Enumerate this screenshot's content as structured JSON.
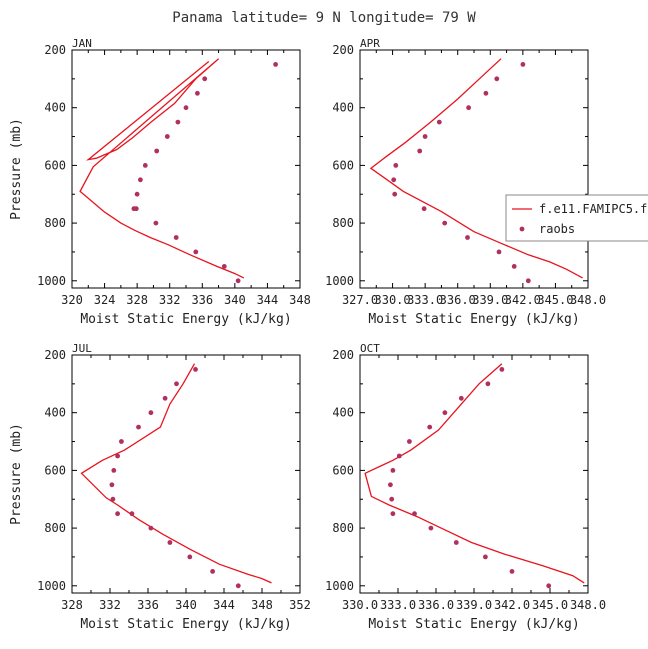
{
  "figure": {
    "title": "Panama  latitude= 9 N longitude= 79 W"
  },
  "chart_data": [
    {
      "type": "line",
      "panel": "JAN",
      "xlabel": "Moist Static Energy (kJ/kg)",
      "ylabel": "Pressure (mb)",
      "xlim": [
        320,
        348
      ],
      "ylim": [
        1025,
        200
      ],
      "x_ticks": [
        "320",
        "324",
        "328",
        "332",
        "336",
        "340",
        "344",
        "348"
      ],
      "y_ticks": [
        "200",
        "400",
        "600",
        "800",
        "1000"
      ],
      "series": [
        {
          "name": "f.e11.FAMIPC5.f",
          "style": "line",
          "color": "#e8141e",
          "x": [
            341.1,
            340.0,
            337.8,
            334.5,
            331.8,
            329.6,
            327.7,
            326.0,
            324.0,
            321.0,
            322.6,
            338.0,
            335.2,
            332.6,
            329.7,
            327.4,
            325.5,
            323.0,
            322.0,
            336.8
          ],
          "y": [
            990,
            975,
            950,
            910,
            875,
            850,
            825,
            800,
            762,
            690,
            605,
            230,
            300,
            385,
            450,
            505,
            545,
            575,
            580,
            240
          ]
        },
        {
          "name": "raobs",
          "style": "points",
          "color": "#b03060",
          "x": [
            345.0,
            336.3,
            335.4,
            334.0,
            333.0,
            331.7,
            330.4,
            329.0,
            328.4,
            328.0,
            327.6,
            327.9,
            330.3,
            332.8,
            335.2,
            338.7,
            340.4
          ],
          "y": [
            250,
            300,
            350,
            400,
            450,
            500,
            550,
            600,
            650,
            700,
            750,
            750,
            800,
            850,
            900,
            950,
            1000
          ]
        }
      ]
    },
    {
      "type": "line",
      "panel": "APR",
      "xlabel": "Moist Static Energy (kJ/kg)",
      "ylabel": "",
      "xlim": [
        327.0,
        348.0
      ],
      "ylim": [
        1025,
        200
      ],
      "x_ticks": [
        "327.0",
        "330.0",
        "333.0",
        "336.0",
        "339.0",
        "342.0",
        "345.0",
        "348.0"
      ],
      "y_ticks": [
        "200",
        "400",
        "600",
        "800",
        "1000"
      ],
      "series": [
        {
          "name": "f.e11.FAMIPC5.f",
          "style": "line",
          "color": "#e8141e",
          "x": [
            340.0,
            338.0,
            336.0,
            333.5,
            331.2,
            329.4,
            328.0,
            331.0,
            334.5,
            337.5,
            340.0,
            342.5,
            344.5,
            346.0,
            347.5
          ],
          "y": [
            230,
            300,
            370,
            450,
            520,
            570,
            610,
            690,
            760,
            830,
            870,
            910,
            935,
            960,
            990
          ]
        },
        {
          "name": "raobs",
          "style": "points",
          "color": "#b03060",
          "x": [
            342.0,
            339.6,
            338.6,
            337.0,
            334.3,
            333.0,
            332.5,
            330.3,
            330.1,
            330.2,
            332.9,
            334.8,
            336.9,
            339.8,
            341.2,
            342.5
          ],
          "y": [
            250,
            300,
            350,
            400,
            450,
            500,
            550,
            600,
            650,
            700,
            750,
            800,
            850,
            900,
            950,
            1000
          ]
        }
      ],
      "legend": {
        "placement": "middle-right",
        "entries": [
          "f.e11.FAMIPC5.f",
          "raobs"
        ]
      }
    },
    {
      "type": "line",
      "panel": "JUL",
      "xlabel": "Moist Static Energy (kJ/kg)",
      "ylabel": "Pressure (mb)",
      "xlim": [
        328,
        352
      ],
      "ylim": [
        1025,
        200
      ],
      "x_ticks": [
        "328",
        "332",
        "336",
        "340",
        "344",
        "348",
        "352"
      ],
      "y_ticks": [
        "200",
        "400",
        "600",
        "800",
        "1000"
      ],
      "series": [
        {
          "name": "f.e11.FAMIPC5.f",
          "style": "line",
          "color": "#e8141e",
          "x": [
            340.9,
            339.7,
            338.3,
            337.3,
            333.5,
            331.2,
            329.0,
            331.6,
            332.8,
            335.0,
            337.5,
            340.5,
            343.5,
            346.5,
            348.0,
            349.0
          ],
          "y": [
            230,
            300,
            370,
            450,
            530,
            565,
            610,
            695,
            720,
            770,
            820,
            875,
            925,
            960,
            975,
            990
          ]
        },
        {
          "name": "raobs",
          "style": "points",
          "color": "#b03060",
          "x": [
            341.0,
            339.0,
            337.8,
            336.3,
            335.0,
            333.2,
            332.8,
            332.4,
            332.2,
            332.3,
            332.8,
            334.3,
            336.3,
            338.3,
            340.4,
            342.8,
            345.5
          ],
          "y": [
            250,
            300,
            350,
            400,
            450,
            500,
            550,
            600,
            650,
            700,
            750,
            750,
            800,
            850,
            900,
            950,
            1000
          ]
        }
      ]
    },
    {
      "type": "line",
      "panel": "OCT",
      "xlabel": "Moist Static Energy (kJ/kg)",
      "ylabel": "",
      "xlim": [
        330.0,
        348.0
      ],
      "ylim": [
        1025,
        200
      ],
      "x_ticks": [
        "330.0",
        "333.0",
        "336.0",
        "339.0",
        "342.0",
        "345.0",
        "348.0"
      ],
      "y_ticks": [
        "200",
        "400",
        "600",
        "800",
        "1000"
      ],
      "series": [
        {
          "name": "f.e11.FAMIPC5.f",
          "style": "line",
          "color": "#e8141e",
          "x": [
            341.2,
            339.4,
            337.8,
            336.2,
            334.0,
            332.6,
            330.4,
            330.9,
            332.3,
            334.5,
            336.4,
            338.8,
            341.4,
            344.4,
            346.8,
            347.7
          ],
          "y": [
            230,
            300,
            380,
            460,
            530,
            565,
            610,
            690,
            720,
            760,
            800,
            850,
            890,
            930,
            965,
            990
          ]
        },
        {
          "name": "raobs",
          "style": "points",
          "color": "#b03060",
          "x": [
            341.2,
            340.1,
            338.0,
            336.7,
            335.5,
            333.9,
            333.1,
            332.6,
            332.4,
            332.5,
            332.6,
            334.3,
            335.6,
            337.6,
            339.9,
            342.0,
            344.9
          ],
          "y": [
            250,
            300,
            350,
            400,
            450,
            500,
            550,
            600,
            650,
            700,
            750,
            750,
            800,
            850,
            900,
            950,
            1000
          ]
        }
      ]
    }
  ]
}
